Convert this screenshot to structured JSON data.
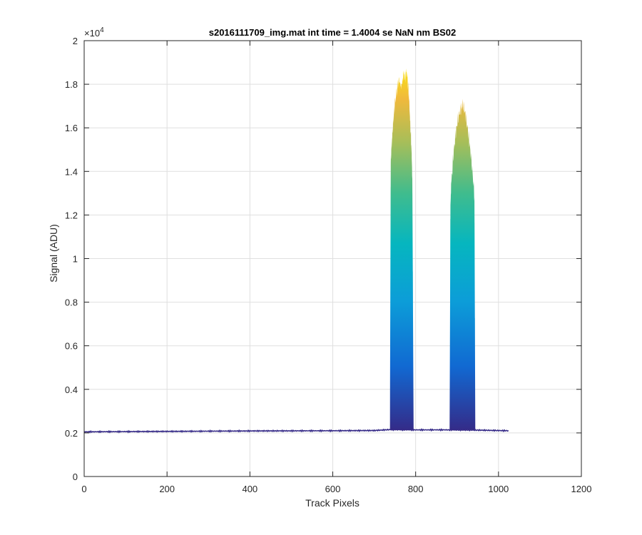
{
  "chart_data": {
    "type": "line",
    "title": "s2016111709_img.mat int time = 1.4004 se  NaN nm BS02",
    "xlabel": "Track Pixels",
    "ylabel": "Signal (ADU)",
    "y_exponent_base": "×10",
    "y_exponent_power": "4",
    "xlim": [
      0,
      1200
    ],
    "ylim": [
      0,
      20000
    ],
    "x_ticks": [
      0,
      200,
      400,
      600,
      800,
      1000,
      1200
    ],
    "x_tick_labels": [
      "0",
      "200",
      "400",
      "600",
      "800",
      "1000",
      "1200"
    ],
    "y_ticks": [
      0,
      2000,
      4000,
      6000,
      8000,
      10000,
      12000,
      14000,
      16000,
      18000,
      20000
    ],
    "y_tick_labels": [
      "0",
      "0.2",
      "0.4",
      "0.6",
      "0.8",
      "1",
      "1.2",
      "1.4",
      "1.6",
      "1.8",
      "2"
    ],
    "grid": true,
    "colormap": "parula",
    "baseline": {
      "x": [
        0,
        100,
        200,
        300,
        400,
        500,
        600,
        700,
        735,
        795,
        880,
        945,
        1024
      ],
      "y": [
        2050,
        2060,
        2070,
        2080,
        2090,
        2095,
        2100,
        2110,
        2150,
        2140,
        2140,
        2130,
        2100
      ]
    },
    "series": [
      {
        "x": [
          738,
          740,
          742,
          745,
          748,
          752,
          756,
          760,
          765,
          770,
          774,
          778,
          782,
          785,
          788,
          790,
          792,
          795
        ],
        "y": [
          2150,
          14500,
          15200,
          16000,
          16800,
          17400,
          17900,
          18200,
          18100,
          18500,
          18300,
          18600,
          18000,
          17000,
          15800,
          15000,
          13800,
          2150
        ]
      },
      {
        "x": [
          882,
          884,
          886,
          890,
          894,
          898,
          902,
          906,
          910,
          914,
          918,
          922,
          926,
          930,
          934,
          938,
          942,
          944
        ],
        "y": [
          2150,
          12500,
          13400,
          14500,
          15300,
          15900,
          16400,
          16700,
          16900,
          17100,
          16800,
          16400,
          15900,
          15300,
          14600,
          13800,
          12800,
          2150
        ]
      }
    ]
  }
}
